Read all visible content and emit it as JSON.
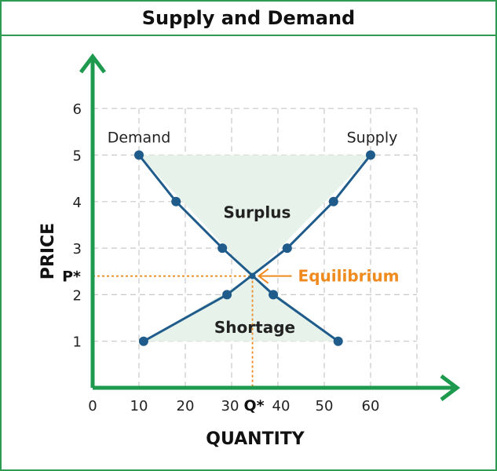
{
  "chart_data": {
    "type": "line",
    "title": "Supply and Demand",
    "xlabel": "QUANTITY",
    "ylabel": "PRICE",
    "xlim": [
      0,
      70
    ],
    "ylim": [
      0,
      6.5
    ],
    "x_ticks": [
      "0",
      "10",
      "20",
      "30",
      "40",
      "50",
      "60"
    ],
    "y_ticks": [
      "1",
      "2",
      "3",
      "4",
      "5",
      "6"
    ],
    "grid": true,
    "series": [
      {
        "name": "Demand",
        "color": "#1f5c8b",
        "points": [
          [
            10,
            5
          ],
          [
            18,
            4
          ],
          [
            28,
            3
          ],
          [
            39,
            2
          ],
          [
            53,
            1
          ]
        ]
      },
      {
        "name": "Supply",
        "color": "#1f5c8b",
        "points": [
          [
            11,
            1
          ],
          [
            29,
            2
          ],
          [
            42,
            3
          ],
          [
            52,
            4
          ],
          [
            60,
            5
          ]
        ]
      }
    ],
    "regions": [
      {
        "label": "Surplus",
        "color": "#e6f2ea"
      },
      {
        "label": "Shortage",
        "color": "#e6f2ea"
      }
    ],
    "equilibrium": {
      "label": "Equilibrium",
      "x": 34.5,
      "y": 2.4,
      "x_marker": "Q*",
      "y_marker": "P*",
      "color": "#ef8a1f"
    },
    "axis_color": "#1e9a4e"
  }
}
